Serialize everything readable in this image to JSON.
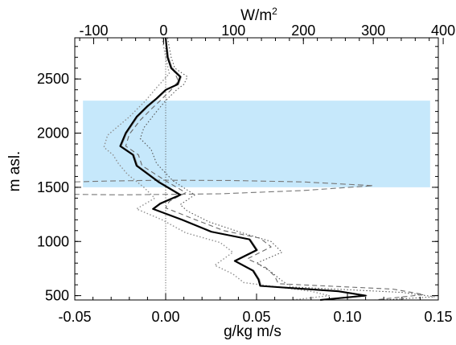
{
  "chart_data": {
    "type": "line",
    "xlabel": "g/kg m/s",
    "ylabel": "m asl.",
    "top_axis_label": "W/m²",
    "xlim": [
      -0.05,
      0.15
    ],
    "top_xlim": [
      -127,
      393
    ],
    "ylim": [
      460,
      2880
    ],
    "x_ticks": [
      -0.05,
      0.0,
      0.05,
      0.1,
      0.15
    ],
    "x_tick_labels": [
      "-0.05",
      "0.00",
      "0.05",
      "0.10",
      "0.15"
    ],
    "top_ticks": [
      -100,
      0,
      100,
      200,
      300,
      400
    ],
    "top_tick_labels": [
      "-100",
      "0",
      "100",
      "200",
      "300",
      "400"
    ],
    "y_ticks": [
      500,
      1000,
      1500,
      2000,
      2500
    ],
    "y_tick_labels": [
      "500",
      "1000",
      "1500",
      "2000",
      "2500"
    ],
    "grid": false,
    "shaded_band": {
      "y_range": [
        1500,
        2300
      ],
      "x_range": [
        -0.0455,
        0.1455
      ],
      "color": "#c6e8fb"
    },
    "zero_line": {
      "x": 0.0,
      "color": "#555555"
    },
    "series": [
      {
        "axis": "bottom",
        "style": "solid-black",
        "points": [
          [
            0.0,
            2880
          ],
          [
            0.001,
            2700
          ],
          [
            0.003,
            2600
          ],
          [
            0.008,
            2520
          ],
          [
            0.0065,
            2450
          ],
          [
            0.0,
            2400
          ],
          [
            -0.005,
            2320
          ],
          [
            -0.01,
            2250
          ],
          [
            -0.016,
            2150
          ],
          [
            -0.022,
            2000
          ],
          [
            -0.025,
            1880
          ],
          [
            -0.018,
            1800
          ],
          [
            -0.016,
            1700
          ],
          [
            -0.004,
            1550
          ],
          [
            0.008,
            1430
          ],
          [
            -0.003,
            1350
          ],
          [
            -0.007,
            1300
          ],
          [
            0.009,
            1200
          ],
          [
            0.025,
            1090
          ],
          [
            0.046,
            1020
          ],
          [
            0.05,
            920
          ],
          [
            0.038,
            820
          ],
          [
            0.048,
            730
          ],
          [
            0.051,
            650
          ],
          [
            0.052,
            590
          ],
          [
            0.095,
            540
          ],
          [
            0.11,
            500
          ],
          [
            0.085,
            460
          ]
        ]
      },
      {
        "axis": "bottom",
        "style": "solid-gray",
        "points": [
          [
            0.0,
            2880
          ],
          [
            0.0015,
            2700
          ],
          [
            0.0035,
            2600
          ],
          [
            0.0085,
            2520
          ],
          [
            0.007,
            2450
          ],
          [
            0.0005,
            2400
          ],
          [
            -0.0045,
            2320
          ],
          [
            -0.0095,
            2250
          ],
          [
            -0.0155,
            2150
          ],
          [
            -0.0215,
            2000
          ],
          [
            -0.0245,
            1880
          ],
          [
            -0.0175,
            1800
          ],
          [
            -0.0155,
            1700
          ],
          [
            -0.0035,
            1550
          ],
          [
            0.0085,
            1430
          ],
          [
            -0.0025,
            1350
          ],
          [
            -0.0065,
            1300
          ],
          [
            0.0095,
            1200
          ],
          [
            0.0255,
            1090
          ],
          [
            0.0465,
            1020
          ],
          [
            0.0505,
            920
          ],
          [
            0.0385,
            820
          ],
          [
            0.0485,
            730
          ],
          [
            0.0515,
            650
          ],
          [
            0.0525,
            590
          ],
          [
            0.0955,
            540
          ],
          [
            0.1105,
            500
          ],
          [
            0.0855,
            460
          ]
        ]
      },
      {
        "axis": "bottom",
        "style": "dotted-left",
        "points": [
          [
            -0.002,
            2880
          ],
          [
            0.0,
            2700
          ],
          [
            0.002,
            2550
          ],
          [
            -0.005,
            2420
          ],
          [
            -0.011,
            2300
          ],
          [
            -0.02,
            2150
          ],
          [
            -0.032,
            1980
          ],
          [
            -0.034,
            1870
          ],
          [
            -0.029,
            1800
          ],
          [
            -0.026,
            1720
          ],
          [
            -0.021,
            1620
          ],
          [
            -0.012,
            1500
          ],
          [
            -0.006,
            1400
          ],
          [
            -0.016,
            1300
          ],
          [
            -0.002,
            1200
          ],
          [
            0.011,
            1080
          ],
          [
            0.03,
            990
          ],
          [
            0.037,
            900
          ],
          [
            0.027,
            780
          ],
          [
            0.037,
            700
          ],
          [
            0.043,
            620
          ],
          [
            0.08,
            540
          ],
          [
            0.09,
            500
          ],
          [
            0.07,
            460
          ]
        ]
      },
      {
        "axis": "bottom",
        "style": "dotted-right",
        "points": [
          [
            0.001,
            2880
          ],
          [
            0.003,
            2700
          ],
          [
            0.005,
            2600
          ],
          [
            0.012,
            2520
          ],
          [
            0.01,
            2450
          ],
          [
            0.006,
            2400
          ],
          [
            0.0,
            2300
          ],
          [
            -0.005,
            2200
          ],
          [
            -0.012,
            2050
          ],
          [
            -0.014,
            1950
          ],
          [
            -0.008,
            1850
          ],
          [
            -0.005,
            1720
          ],
          [
            0.004,
            1560
          ],
          [
            0.016,
            1430
          ],
          [
            0.008,
            1340
          ],
          [
            0.012,
            1280
          ],
          [
            0.024,
            1180
          ],
          [
            0.042,
            1080
          ],
          [
            0.058,
            1000
          ],
          [
            0.064,
            900
          ],
          [
            0.05,
            800
          ],
          [
            0.058,
            720
          ],
          [
            0.063,
            650
          ],
          [
            0.069,
            580
          ],
          [
            0.13,
            530
          ],
          [
            0.148,
            490
          ],
          [
            0.12,
            460
          ]
        ]
      },
      {
        "axis": "bottom",
        "style": "dashed",
        "points": [
          [
            0.004,
            2600
          ],
          [
            0.007,
            2480
          ],
          [
            0.003,
            2400
          ],
          [
            -0.003,
            2300
          ],
          [
            -0.008,
            2220
          ],
          [
            -0.014,
            2120
          ],
          [
            -0.02,
            1990
          ],
          [
            -0.022,
            1880
          ],
          [
            -0.015,
            1800
          ],
          [
            -0.013,
            1700
          ],
          [
            0.0,
            1560
          ],
          [
            0.011,
            1450
          ],
          [
            0.002,
            1370
          ],
          [
            0.0,
            1310
          ],
          [
            0.015,
            1210
          ],
          [
            0.032,
            1100
          ],
          [
            0.052,
            1030
          ],
          [
            0.058,
            950
          ],
          [
            0.045,
            840
          ],
          [
            0.055,
            760
          ],
          [
            0.06,
            680
          ],
          [
            0.062,
            610
          ],
          [
            0.125,
            560
          ],
          [
            0.142,
            510
          ],
          [
            0.115,
            460
          ]
        ]
      },
      {
        "axis": "top",
        "style": "dashed-flux",
        "points": [
          [
            -127,
            1550
          ],
          [
            -80,
            1558
          ],
          [
            0,
            1565
          ],
          [
            100,
            1562
          ],
          [
            200,
            1550
          ],
          [
            300,
            1515
          ],
          [
            200,
            1470
          ],
          [
            80,
            1440
          ],
          [
            -60,
            1430
          ],
          [
            -127,
            1435
          ]
        ]
      }
    ]
  }
}
